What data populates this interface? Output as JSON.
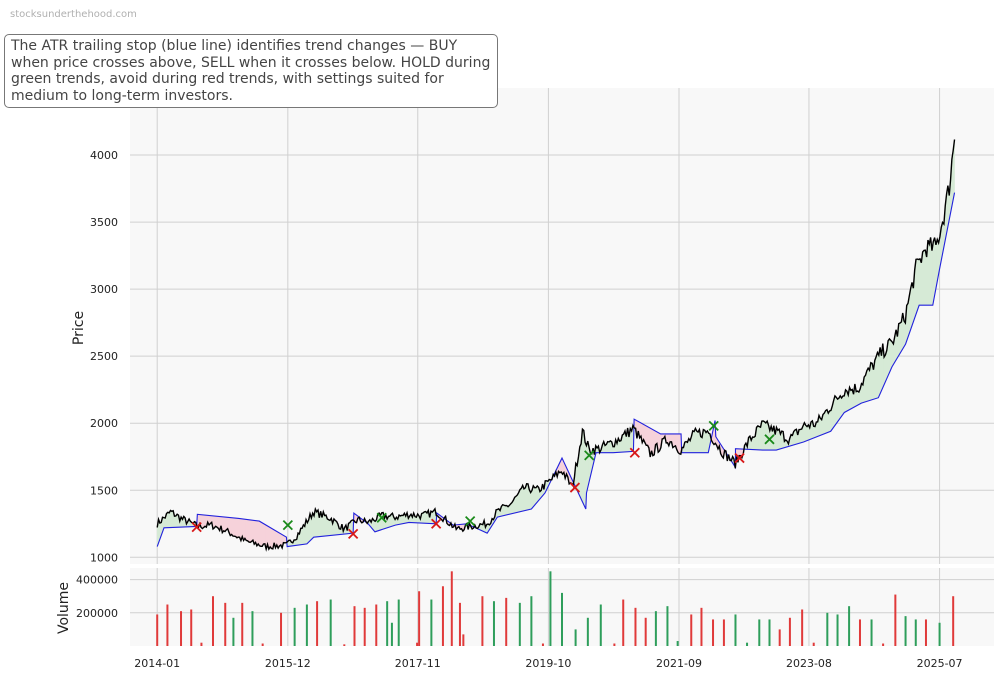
{
  "watermark": "stocksunderthehood.com",
  "annotation": "The ATR trailing stop (blue line) identifies trend changes — BUY when price crosses above, SELL when it crosses below. HOLD during green trends, avoid during red trends, with settings suited for medium to long-term investors.",
  "colors": {
    "price": "#000000",
    "stop": "#2222dd",
    "bull_fill": "#d6ead6",
    "bear_fill": "#f6d2da",
    "buy_marker": "#1a8a1a",
    "sell_marker": "#d81818",
    "vol_up": "#2e9e5b",
    "vol_down": "#e03a3a",
    "plot_bg": "#f8f8f8",
    "grid": "#d0d0d0"
  },
  "chart_data": [
    {
      "type": "line",
      "ylabel": "Price",
      "ylim": [
        950,
        4500
      ],
      "yticks": [
        1000,
        1500,
        2000,
        2500,
        3000,
        3500,
        4000
      ],
      "xlim": [
        2013.6,
        2026.3
      ],
      "xtick_labels": [
        "2014-01",
        "2015-12",
        "2017-11",
        "2019-10",
        "2021-09",
        "2023-08",
        "2025-07"
      ],
      "xtick_values": [
        2014.0,
        2015.92,
        2017.83,
        2019.75,
        2021.67,
        2023.58,
        2025.5
      ],
      "grid": true,
      "series": [
        {
          "role": "price",
          "x": [
            2014.0,
            2014.2,
            2014.35,
            2014.6,
            2014.8,
            2015.0,
            2015.3,
            2015.6,
            2015.9,
            2016.05,
            2016.3,
            2016.55,
            2016.75,
            2016.95,
            2017.1,
            2017.3,
            2017.5,
            2017.7,
            2017.9,
            2018.1,
            2018.4,
            2018.6,
            2018.85,
            2019.0,
            2019.2,
            2019.4,
            2019.6,
            2019.75,
            2019.95,
            2020.1,
            2020.25,
            2020.35,
            2020.5,
            2020.75,
            2021.0,
            2021.25,
            2021.5,
            2021.7,
            2021.9,
            2022.1,
            2022.3,
            2022.5,
            2022.7,
            2022.9,
            2023.1,
            2023.3,
            2023.5,
            2023.7,
            2023.9,
            2024.1,
            2024.3,
            2024.5,
            2024.65,
            2024.8,
            2025.0,
            2025.15,
            2025.3,
            2025.45,
            2025.55,
            2025.65,
            2025.72
          ],
          "y": [
            1250,
            1340,
            1290,
            1230,
            1240,
            1200,
            1120,
            1080,
            1090,
            1160,
            1340,
            1290,
            1210,
            1280,
            1260,
            1310,
            1300,
            1320,
            1310,
            1340,
            1210,
            1230,
            1250,
            1340,
            1400,
            1520,
            1500,
            1560,
            1650,
            1520,
            1940,
            1800,
            1810,
            1870,
            1960,
            1770,
            1880,
            1800,
            1920,
            1940,
            1790,
            1700,
            1870,
            1990,
            1940,
            1880,
            1980,
            2000,
            2130,
            2250,
            2260,
            2420,
            2530,
            2600,
            2810,
            3150,
            3310,
            3320,
            3520,
            3790,
            4150
          ]
        },
        {
          "role": "trailing_stop",
          "x": [
            2014.0,
            2014.1,
            2014.58,
            2014.59,
            2015.2,
            2015.5,
            2015.9,
            2015.91,
            2016.2,
            2016.3,
            2016.88,
            2016.89,
            2017.1,
            2017.2,
            2017.5,
            2017.7,
            2018.1,
            2018.11,
            2018.35,
            2018.55,
            2018.85,
            2019.0,
            2019.5,
            2019.7,
            2019.95,
            2020.3,
            2020.31,
            2020.45,
            2020.7,
            2021.0,
            2021.01,
            2021.4,
            2021.7,
            2021.71,
            2022.1,
            2022.2,
            2022.21,
            2022.5,
            2022.5,
            2022.9,
            2023.1,
            2023.5,
            2023.7,
            2023.9,
            2024.1,
            2024.35,
            2024.6,
            2024.8,
            2025.0,
            2025.2,
            2025.4,
            2025.5,
            2025.72
          ],
          "y": [
            1080,
            1220,
            1230,
            1320,
            1290,
            1270,
            1150,
            1080,
            1100,
            1150,
            1180,
            1330,
            1250,
            1190,
            1240,
            1260,
            1250,
            1330,
            1240,
            1250,
            1180,
            1300,
            1360,
            1480,
            1740,
            1360,
            1480,
            1780,
            1780,
            1790,
            2030,
            1920,
            1920,
            1780,
            1780,
            2020,
            1900,
            1670,
            1810,
            1800,
            1800,
            1860,
            1900,
            1940,
            2080,
            2150,
            2190,
            2420,
            2590,
            2880,
            2880,
            3150,
            3720
          ]
        }
      ],
      "signals": [
        {
          "x": 2014.58,
          "y": 1225,
          "type": "sell"
        },
        {
          "x": 2015.92,
          "y": 1240,
          "type": "buy"
        },
        {
          "x": 2016.88,
          "y": 1175,
          "type": "sell"
        },
        {
          "x": 2017.3,
          "y": 1295,
          "type": "buy"
        },
        {
          "x": 2018.1,
          "y": 1250,
          "type": "sell"
        },
        {
          "x": 2018.6,
          "y": 1270,
          "type": "buy"
        },
        {
          "x": 2020.14,
          "y": 1520,
          "type": "sell"
        },
        {
          "x": 2020.35,
          "y": 1760,
          "type": "buy"
        },
        {
          "x": 2021.02,
          "y": 1780,
          "type": "sell"
        },
        {
          "x": 2022.18,
          "y": 1980,
          "type": "buy"
        },
        {
          "x": 2022.56,
          "y": 1740,
          "type": "sell"
        },
        {
          "x": 2023.0,
          "y": 1880,
          "type": "buy"
        }
      ]
    },
    {
      "type": "bar",
      "ylabel": "Volume",
      "ylim": [
        0,
        470000
      ],
      "yticks": [
        200000,
        400000
      ],
      "bars": [
        {
          "x": 2014.0,
          "v": 190000,
          "up": false
        },
        {
          "x": 2014.15,
          "v": 250000,
          "up": false
        },
        {
          "x": 2014.35,
          "v": 210000,
          "up": false
        },
        {
          "x": 2014.5,
          "v": 220000,
          "up": false
        },
        {
          "x": 2014.65,
          "v": 20000,
          "up": false
        },
        {
          "x": 2014.82,
          "v": 300000,
          "up": false
        },
        {
          "x": 2015.0,
          "v": 260000,
          "up": false
        },
        {
          "x": 2015.12,
          "v": 170000,
          "up": true
        },
        {
          "x": 2015.25,
          "v": 260000,
          "up": false
        },
        {
          "x": 2015.4,
          "v": 210000,
          "up": true
        },
        {
          "x": 2015.55,
          "v": 15000,
          "up": false
        },
        {
          "x": 2015.82,
          "v": 200000,
          "up": false
        },
        {
          "x": 2016.02,
          "v": 230000,
          "up": true
        },
        {
          "x": 2016.2,
          "v": 250000,
          "up": true
        },
        {
          "x": 2016.35,
          "v": 270000,
          "up": false
        },
        {
          "x": 2016.55,
          "v": 280000,
          "up": true
        },
        {
          "x": 2016.75,
          "v": 10000,
          "up": false
        },
        {
          "x": 2016.9,
          "v": 240000,
          "up": false
        },
        {
          "x": 2017.05,
          "v": 230000,
          "up": false
        },
        {
          "x": 2017.22,
          "v": 250000,
          "up": false
        },
        {
          "x": 2017.38,
          "v": 270000,
          "up": true
        },
        {
          "x": 2017.45,
          "v": 140000,
          "up": true
        },
        {
          "x": 2017.55,
          "v": 280000,
          "up": true
        },
        {
          "x": 2017.82,
          "v": 20000,
          "up": false
        },
        {
          "x": 2017.85,
          "v": 330000,
          "up": false
        },
        {
          "x": 2018.03,
          "v": 280000,
          "up": true
        },
        {
          "x": 2018.2,
          "v": 360000,
          "up": false
        },
        {
          "x": 2018.33,
          "v": 450000,
          "up": false
        },
        {
          "x": 2018.45,
          "v": 260000,
          "up": false
        },
        {
          "x": 2018.5,
          "v": 70000,
          "up": false
        },
        {
          "x": 2018.78,
          "v": 300000,
          "up": false
        },
        {
          "x": 2018.95,
          "v": 270000,
          "up": true
        },
        {
          "x": 2019.13,
          "v": 290000,
          "up": false
        },
        {
          "x": 2019.33,
          "v": 260000,
          "up": true
        },
        {
          "x": 2019.5,
          "v": 300000,
          "up": true
        },
        {
          "x": 2019.67,
          "v": 15000,
          "up": false
        },
        {
          "x": 2019.78,
          "v": 450000,
          "up": true
        },
        {
          "x": 2019.95,
          "v": 320000,
          "up": true
        },
        {
          "x": 2020.15,
          "v": 100000,
          "up": true
        },
        {
          "x": 2020.33,
          "v": 170000,
          "up": true
        },
        {
          "x": 2020.52,
          "v": 250000,
          "up": true
        },
        {
          "x": 2020.72,
          "v": 15000,
          "up": false
        },
        {
          "x": 2020.85,
          "v": 280000,
          "up": false
        },
        {
          "x": 2021.03,
          "v": 230000,
          "up": false
        },
        {
          "x": 2021.18,
          "v": 170000,
          "up": false
        },
        {
          "x": 2021.33,
          "v": 210000,
          "up": true
        },
        {
          "x": 2021.5,
          "v": 240000,
          "up": true
        },
        {
          "x": 2021.65,
          "v": 30000,
          "up": true
        },
        {
          "x": 2021.85,
          "v": 190000,
          "up": false
        },
        {
          "x": 2022.0,
          "v": 230000,
          "up": false
        },
        {
          "x": 2022.17,
          "v": 160000,
          "up": false
        },
        {
          "x": 2022.33,
          "v": 160000,
          "up": false
        },
        {
          "x": 2022.5,
          "v": 190000,
          "up": true
        },
        {
          "x": 2022.67,
          "v": 20000,
          "up": true
        },
        {
          "x": 2022.85,
          "v": 160000,
          "up": true
        },
        {
          "x": 2023.0,
          "v": 160000,
          "up": true
        },
        {
          "x": 2023.15,
          "v": 100000,
          "up": false
        },
        {
          "x": 2023.3,
          "v": 170000,
          "up": false
        },
        {
          "x": 2023.48,
          "v": 220000,
          "up": false
        },
        {
          "x": 2023.65,
          "v": 20000,
          "up": false
        },
        {
          "x": 2023.85,
          "v": 200000,
          "up": true
        },
        {
          "x": 2024.0,
          "v": 190000,
          "up": true
        },
        {
          "x": 2024.17,
          "v": 240000,
          "up": true
        },
        {
          "x": 2024.33,
          "v": 160000,
          "up": false
        },
        {
          "x": 2024.5,
          "v": 160000,
          "up": true
        },
        {
          "x": 2024.67,
          "v": 15000,
          "up": false
        },
        {
          "x": 2024.85,
          "v": 310000,
          "up": false
        },
        {
          "x": 2025.0,
          "v": 180000,
          "up": true
        },
        {
          "x": 2025.15,
          "v": 160000,
          "up": true
        },
        {
          "x": 2025.3,
          "v": 160000,
          "up": false
        },
        {
          "x": 2025.5,
          "v": 140000,
          "up": true
        },
        {
          "x": 2025.7,
          "v": 300000,
          "up": false
        }
      ]
    }
  ]
}
